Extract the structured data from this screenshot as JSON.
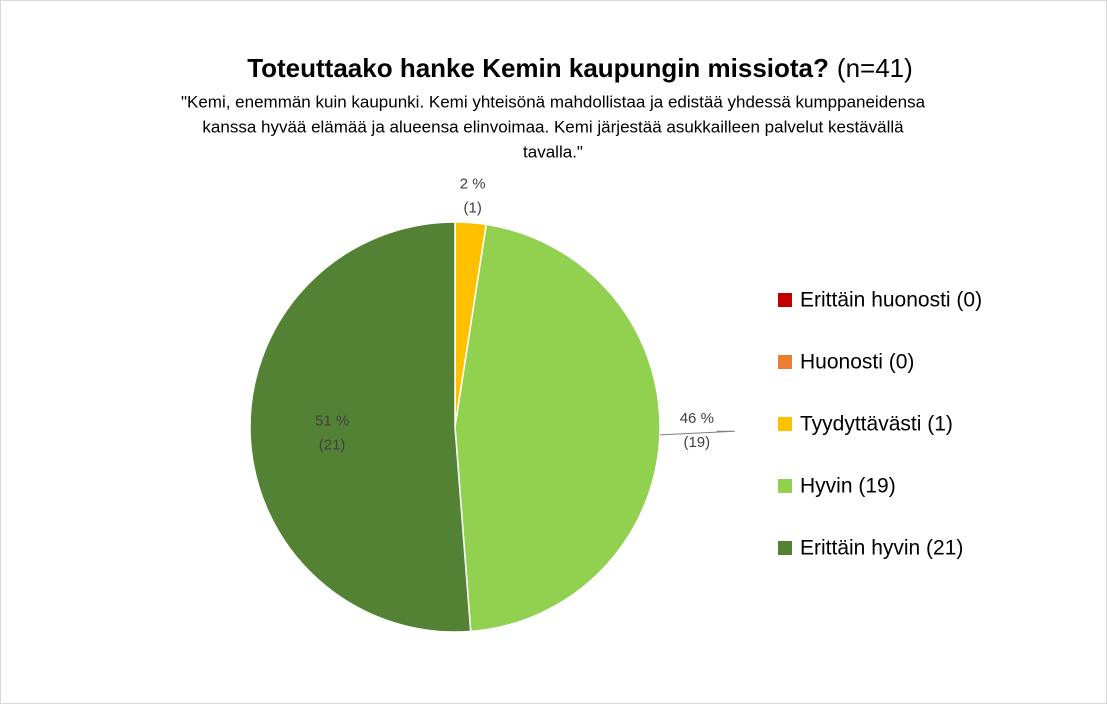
{
  "chart_data": {
    "type": "pie",
    "title": "Toteuttaako hanke Kemin kaupungin missiota?",
    "title_note": "(n=41)",
    "subtitle": [
      "\"Kemi, enemmän kuin kaupunki. Kemi yhteisönä mahdollistaa ja edistää yhdessä kumppaneidensa",
      "kanssa hyvää elämää ja alueensa elinvoimaa. Kemi järjestää asukkailleen palvelut kestävällä",
      "tavalla.\""
    ],
    "categories": [
      "Erittäin huonosti (0)",
      "Huonosti (0)",
      "Tyydyttävästi (1)",
      "Hyvin (19)",
      "Erittäin hyvin (21)"
    ],
    "colors": [
      "#c00000",
      "#ed7d31",
      "#ffc000",
      "#92d050",
      "#548235"
    ],
    "values": [
      0,
      0,
      2,
      46,
      51
    ],
    "value_labels": [
      null,
      null,
      "2 %",
      "46 %",
      "51 %"
    ],
    "counts": [
      0,
      0,
      1,
      19,
      21
    ],
    "count_labels": [
      null,
      null,
      "(1)",
      "(19)",
      "(21)"
    ],
    "legend": "right"
  }
}
